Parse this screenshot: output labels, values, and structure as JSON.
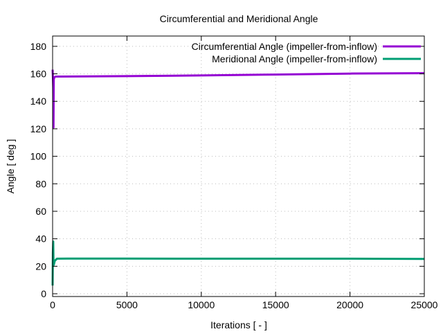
{
  "chart_data": {
    "type": "line",
    "title": "Circumferential and Meridional Angle",
    "xlabel": "Iterations [ - ]",
    "ylabel": "Angle [ deg ]",
    "xlim": [
      0,
      25000
    ],
    "ylim": [
      -2,
      187.5
    ],
    "xticks": [
      0,
      5000,
      10000,
      15000,
      20000,
      25000
    ],
    "xtick_labels": [
      "0",
      "5000",
      "10000",
      "15000",
      "20000",
      "25000"
    ],
    "yticks": [
      0,
      20,
      40,
      60,
      80,
      100,
      120,
      140,
      160,
      180
    ],
    "ytick_labels": [
      "0",
      "20",
      "40",
      "60",
      "80",
      "100",
      "120",
      "140",
      "160",
      "180"
    ],
    "grid": true,
    "legend_position": "top-right",
    "series": [
      {
        "name": "Circumferential Angle (impeller-from-inflow)",
        "color": "#9400d3",
        "x": [
          0,
          20,
          40,
          60,
          80,
          120,
          200,
          500,
          5000,
          10000,
          15000,
          20000,
          25000
        ],
        "y": [
          163,
          158,
          150,
          121,
          156,
          157.5,
          158,
          158,
          158.3,
          158.8,
          159.5,
          160.2,
          160.5
        ]
      },
      {
        "name": "Meridional Angle (impeller-from-inflow)",
        "color": "#009e73",
        "x": [
          0,
          20,
          40,
          60,
          80,
          150,
          300,
          1000,
          5000,
          10000,
          15000,
          20000,
          25000
        ],
        "y": [
          6,
          30,
          38,
          22,
          21,
          24,
          25.5,
          25.6,
          25.6,
          25.5,
          25.5,
          25.5,
          25.3
        ]
      }
    ]
  }
}
